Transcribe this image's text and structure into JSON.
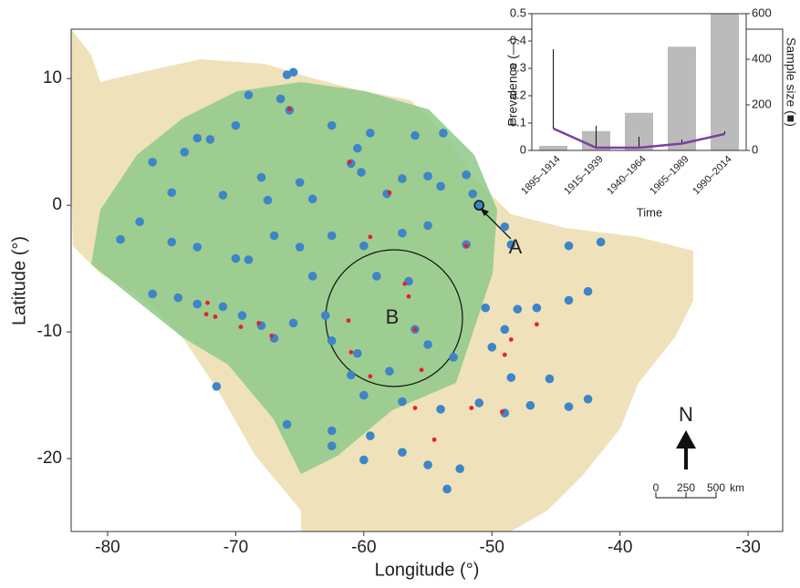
{
  "chart_data": [
    {
      "type": "scatter",
      "xlabel": "Longitude (°)",
      "ylabel": "Latitude (°)",
      "xlim": [
        -82.85,
        -27.3
      ],
      "ylim": [
        -25.75,
        13.9
      ],
      "xticks": [
        -80,
        -70,
        -60,
        -50,
        -40,
        -30
      ],
      "yticks": [
        -20,
        -10,
        0,
        10
      ],
      "series": [
        {
          "color": "#3d85c6",
          "x": [
            -66,
            -65.5,
            -69,
            -66.5,
            -65.8,
            -70,
            -62.5,
            -59.5,
            -56,
            -53.8,
            -73,
            -74,
            -72,
            -76.5,
            -61,
            -60.2,
            -57,
            -55,
            -52,
            -60.5,
            -65,
            -68,
            -75,
            -71,
            -67.5,
            -64,
            -58.2,
            -54,
            -51.5,
            -79,
            -77.5,
            -75,
            -73,
            -70,
            -69,
            -67,
            -65,
            -62.5,
            -60,
            -57,
            -55,
            -52,
            -49,
            -48.5,
            -44,
            -41.5,
            -76.5,
            -74.5,
            -73,
            -71,
            -69.5,
            -68,
            -67,
            -65.5,
            -63,
            -62.5,
            -60.5,
            -61,
            -58,
            -56,
            -55,
            -53,
            -50,
            -49,
            -48,
            -46.5,
            -44,
            -42.5,
            -50.5,
            -45.5,
            -48.5,
            -60,
            -57,
            -54,
            -51,
            -49,
            -47,
            -44,
            -42.5,
            -62.5,
            -59.5,
            -57,
            -55,
            -52.5,
            -53.5,
            -60,
            -66,
            -56.5,
            -59,
            -64,
            -71.5,
            -62.5,
            -51
          ],
          "y": [
            10.3,
            10.5,
            8.7,
            8.4,
            7.5,
            6.3,
            6.3,
            5.7,
            5.5,
            5.7,
            5.3,
            4.2,
            5.2,
            3.4,
            3.3,
            2.6,
            2.1,
            2.3,
            2.4,
            4.5,
            1.8,
            2.2,
            1,
            0.8,
            0.4,
            0.5,
            0.9,
            1.5,
            0.9,
            -2.7,
            -1.3,
            -2.9,
            -3.3,
            -4.2,
            -4.3,
            -2.4,
            -3.3,
            -2.4,
            -3.2,
            -2.2,
            -1.6,
            -3.1,
            -1.7,
            -3.1,
            -3.2,
            -2.9,
            -7,
            -7.3,
            -7.8,
            -8,
            -8.7,
            -9.5,
            -10.5,
            -9.3,
            -8.7,
            -10.7,
            -11.7,
            -13.4,
            -13.1,
            -9.8,
            -11,
            -12,
            -11.2,
            -9.8,
            -8.2,
            -8.1,
            -7.5,
            -6.8,
            -8.1,
            -13.7,
            -13.6,
            -15,
            -15.5,
            -16.1,
            -15.6,
            -16.4,
            -15.8,
            -15.9,
            -15.3,
            -17.8,
            -18.2,
            -19.5,
            -20.5,
            -20.8,
            -22.4,
            -20.1,
            -17.3,
            -6,
            -5.6,
            -5.6,
            -14.3,
            -19,
            0
          ]
        },
        {
          "color": "#e8202a",
          "x": [
            -65.8,
            -61.1,
            -58,
            -59.5,
            -52,
            -56.8,
            -56.5,
            -72.2,
            -72.3,
            -71.6,
            -69.6,
            -68.2,
            -67.2,
            -61.2,
            -56,
            -61,
            -59.5,
            -55.5,
            -56,
            -51.6,
            -49.2,
            -54.5,
            -46.5,
            -48.5,
            -49
          ],
          "y": [
            7.6,
            3.4,
            1,
            -2.5,
            -3.2,
            -6.2,
            -7.2,
            -7.7,
            -8.6,
            -8.8,
            -9.6,
            -9.3,
            -10.3,
            -9.1,
            -9.8,
            -11.6,
            -13.5,
            -13,
            -16,
            -16,
            -16.3,
            -18.5,
            -9.4,
            -10.6,
            -11.8
          ]
        }
      ],
      "annotations": [
        "A",
        "B",
        "N"
      ],
      "scale_bar": {
        "labels": [
          "0",
          "250",
          "500"
        ],
        "unit": "km"
      }
    },
    {
      "type": "bar",
      "categories": [
        "1895–1914",
        "1915–1939",
        "1940–1964",
        "1965–1989",
        "1990–2014"
      ],
      "xlabel": "Time",
      "ylabel": "Prevalence (—)",
      "y2label": "Sample size (■)",
      "ylim": [
        0,
        0.5
      ],
      "yticks": [
        0,
        0.1,
        0.2,
        0.3,
        0.4,
        0.5
      ],
      "y2lim": [
        0,
        600
      ],
      "y2ticks": [
        0,
        200,
        400,
        600
      ],
      "series": [
        {
          "type": "bar",
          "axis": "y2",
          "color": "#bbbbbb",
          "values": [
            20,
            85,
            165,
            455,
            600
          ]
        },
        {
          "type": "line",
          "color": "#7b3fa0",
          "values": [
            0.08,
            0.01,
            0.01,
            0.025,
            0.06
          ],
          "ci_upper": [
            0.37,
            0.09,
            0.05,
            0.04,
            0.07
          ]
        }
      ]
    }
  ]
}
